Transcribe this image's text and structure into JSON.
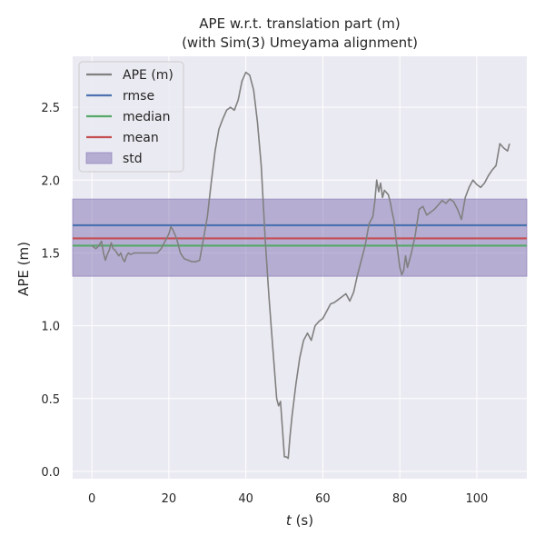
{
  "chart_data": {
    "type": "line",
    "title": "APE w.r.t. translation part (m)",
    "subtitle": "(with Sim(3) Umeyama alignment)",
    "xlabel_var": "t",
    "xlabel_unit": " (s)",
    "ylabel": "APE (m)",
    "xlim": [
      -5,
      113
    ],
    "ylim": [
      -0.05,
      2.85
    ],
    "xticks": [
      0,
      20,
      40,
      60,
      80,
      100
    ],
    "yticks": [
      0.0,
      0.5,
      1.0,
      1.5,
      2.0,
      2.5
    ],
    "xtick_labels": [
      "0",
      "20",
      "40",
      "60",
      "80",
      "100"
    ],
    "ytick_labels": [
      "0.0",
      "0.5",
      "1.0",
      "1.5",
      "2.0",
      "2.5"
    ],
    "grid": true,
    "legend_position": "top-left",
    "stats": {
      "rmse": 1.69,
      "median": 1.55,
      "mean": 1.6,
      "std_band": [
        1.34,
        1.87
      ]
    },
    "legend": [
      {
        "key": "ape",
        "label": "APE (m)",
        "kind": "line",
        "color": "#808080"
      },
      {
        "key": "rmse",
        "label": "rmse",
        "kind": "line",
        "color": "#4c72b0"
      },
      {
        "key": "median",
        "label": "median",
        "kind": "line",
        "color": "#55a868"
      },
      {
        "key": "mean",
        "label": "mean",
        "kind": "line",
        "color": "#c44e52"
      },
      {
        "key": "std",
        "label": "std",
        "kind": "patch",
        "color": "#8172b2"
      }
    ],
    "series": [
      {
        "name": "APE (m)",
        "color": "#808080",
        "x": [
          0.0,
          0.5,
          1.0,
          1.5,
          2.0,
          2.5,
          3.0,
          3.5,
          4.0,
          4.5,
          5.0,
          5.5,
          6.0,
          6.5,
          7.0,
          7.5,
          8.0,
          8.5,
          9.0,
          9.5,
          10.0,
          11.0,
          12.0,
          14.0,
          16.0,
          17.0,
          18.0,
          19.0,
          20.0,
          20.5,
          21.0,
          22.0,
          23.0,
          24.0,
          25.0,
          26.0,
          27.0,
          28.0,
          29.0,
          30.0,
          31.0,
          32.0,
          33.0,
          34.0,
          35.0,
          36.0,
          37.0,
          38.0,
          39.0,
          40.0,
          41.0,
          42.0,
          43.0,
          44.0,
          45.0,
          46.0,
          47.0,
          48.0,
          48.5,
          49.0,
          49.5,
          50.0,
          50.5,
          51.0,
          51.5,
          52.0,
          53.0,
          54.0,
          55.0,
          56.0,
          57.0,
          58.0,
          59.0,
          60.0,
          61.0,
          62.0,
          63.0,
          64.0,
          65.0,
          66.0,
          67.0,
          68.0,
          69.0,
          70.0,
          71.0,
          72.0,
          73.0,
          73.5,
          74.0,
          74.5,
          75.0,
          75.5,
          76.0,
          77.0,
          77.5,
          78.0,
          78.5,
          79.0,
          79.5,
          80.0,
          80.5,
          81.0,
          81.5,
          82.0,
          83.0,
          84.0,
          85.0,
          86.0,
          87.0,
          88.0,
          89.0,
          90.0,
          91.0,
          92.0,
          93.0,
          94.0,
          95.0,
          96.0,
          97.0,
          98.0,
          99.0,
          100.0,
          101.0,
          102.0,
          103.0,
          104.0,
          105.0,
          106.0,
          107.0,
          108.0,
          108.5
        ],
        "values": [
          1.55,
          1.54,
          1.53,
          1.54,
          1.56,
          1.58,
          1.5,
          1.45,
          1.49,
          1.52,
          1.57,
          1.53,
          1.52,
          1.5,
          1.48,
          1.5,
          1.46,
          1.44,
          1.48,
          1.5,
          1.49,
          1.5,
          1.5,
          1.5,
          1.5,
          1.5,
          1.53,
          1.58,
          1.63,
          1.68,
          1.66,
          1.6,
          1.5,
          1.46,
          1.45,
          1.44,
          1.44,
          1.45,
          1.6,
          1.75,
          1.98,
          2.2,
          2.35,
          2.42,
          2.48,
          2.5,
          2.48,
          2.55,
          2.68,
          2.74,
          2.72,
          2.62,
          2.4,
          2.1,
          1.6,
          1.2,
          0.85,
          0.5,
          0.45,
          0.48,
          0.3,
          0.1,
          0.1,
          0.09,
          0.25,
          0.38,
          0.6,
          0.78,
          0.9,
          0.95,
          0.9,
          1.0,
          1.03,
          1.05,
          1.1,
          1.15,
          1.16,
          1.18,
          1.2,
          1.22,
          1.17,
          1.23,
          1.35,
          1.45,
          1.55,
          1.7,
          1.75,
          1.85,
          2.0,
          1.92,
          1.98,
          1.88,
          1.93,
          1.9,
          1.85,
          1.78,
          1.72,
          1.6,
          1.5,
          1.4,
          1.35,
          1.38,
          1.48,
          1.4,
          1.5,
          1.62,
          1.8,
          1.82,
          1.76,
          1.78,
          1.8,
          1.83,
          1.86,
          1.84,
          1.87,
          1.85,
          1.8,
          1.73,
          1.88,
          1.95,
          2.0,
          1.97,
          1.95,
          1.98,
          2.03,
          2.07,
          2.1,
          2.25,
          2.22,
          2.2,
          2.25
        ]
      }
    ]
  }
}
